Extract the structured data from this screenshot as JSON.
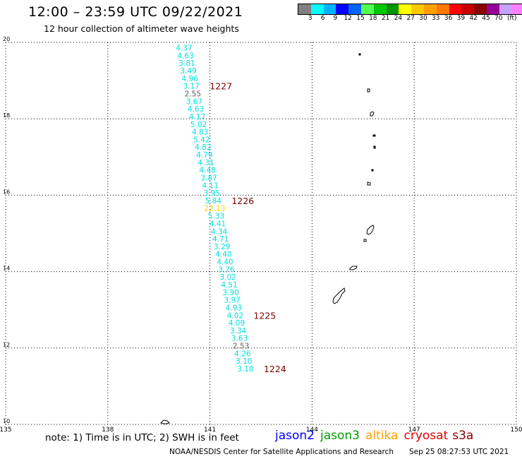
{
  "header": {
    "title": "12:00 – 23:59 UTC 09/22/2021",
    "subtitle": "12 hour collection of altimeter wave heights"
  },
  "legend": {
    "unit": "(ft)",
    "colors": [
      "#808080",
      "#00ffff",
      "#00b4ff",
      "#0000ff",
      "#0064ff",
      "#50ff50",
      "#00c800",
      "#009600",
      "#ffff00",
      "#ffc800",
      "#ffa000",
      "#ff7800",
      "#ff0000",
      "#c80000",
      "#8b0000",
      "#960096",
      "#c8a0ff",
      "#ff80ff",
      "#000000"
    ],
    "labels": [
      "3",
      "6",
      "9",
      "12",
      "15",
      "18",
      "21",
      "24",
      "27",
      "30",
      "33",
      "36",
      "39",
      "42",
      "45",
      "70"
    ]
  },
  "map": {
    "lon_ticks": [
      "135",
      "138",
      "141",
      "144",
      "147",
      "150"
    ],
    "lat_ticks": [
      "20",
      "18",
      "16",
      "14",
      "12",
      "10"
    ],
    "lon_range": [
      135,
      150
    ],
    "lat_range": [
      10,
      20
    ],
    "grid": true
  },
  "track": {
    "color_default": "#00dede",
    "color_low": "#606060",
    "color_high": "#e8d800",
    "points": [
      {
        "lat": 19.86,
        "value": "4.37"
      },
      {
        "lat": 19.66,
        "value": "4.63"
      },
      {
        "lat": 19.46,
        "value": "3.81"
      },
      {
        "lat": 19.26,
        "value": "3.49"
      },
      {
        "lat": 19.06,
        "value": "4.96"
      },
      {
        "lat": 18.86,
        "value": "3.17"
      },
      {
        "lat": 18.66,
        "value": "2.55"
      },
      {
        "lat": 18.46,
        "value": "3.67"
      },
      {
        "lat": 18.26,
        "value": "4.63"
      },
      {
        "lat": 18.06,
        "value": "4.17"
      },
      {
        "lat": 17.86,
        "value": "5.02"
      },
      {
        "lat": 17.66,
        "value": "4.83"
      },
      {
        "lat": 17.46,
        "value": "5.42"
      },
      {
        "lat": 17.26,
        "value": "4.82"
      },
      {
        "lat": 17.06,
        "value": "4.79"
      },
      {
        "lat": 16.86,
        "value": "4.31"
      },
      {
        "lat": 16.66,
        "value": "4.48"
      },
      {
        "lat": 16.46,
        "value": "3.87"
      },
      {
        "lat": 16.26,
        "value": "4.11"
      },
      {
        "lat": 16.06,
        "value": "3.95"
      },
      {
        "lat": 15.86,
        "value": "5.84"
      },
      {
        "lat": 15.66,
        "value": "22.13"
      },
      {
        "lat": 15.46,
        "value": "5.33"
      },
      {
        "lat": 15.26,
        "value": "4.41"
      },
      {
        "lat": 15.06,
        "value": "4.34"
      },
      {
        "lat": 14.86,
        "value": "4.71"
      },
      {
        "lat": 14.66,
        "value": "3.29"
      },
      {
        "lat": 14.46,
        "value": "4.40"
      },
      {
        "lat": 14.26,
        "value": "4.40"
      },
      {
        "lat": 14.06,
        "value": "3.76"
      },
      {
        "lat": 13.86,
        "value": "3.02"
      },
      {
        "lat": 13.66,
        "value": "4.51"
      },
      {
        "lat": 13.46,
        "value": "3.90"
      },
      {
        "lat": 13.26,
        "value": "3.97"
      },
      {
        "lat": 13.06,
        "value": "4.93"
      },
      {
        "lat": 12.86,
        "value": "4.02"
      },
      {
        "lat": 12.66,
        "value": "4.09"
      },
      {
        "lat": 12.46,
        "value": "3.34"
      },
      {
        "lat": 12.26,
        "value": "3.63"
      },
      {
        "lat": 12.06,
        "value": "2.53"
      },
      {
        "lat": 11.86,
        "value": "4.26"
      },
      {
        "lat": 11.66,
        "value": "3.10"
      },
      {
        "lat": 11.46,
        "value": "3.10"
      }
    ],
    "time_labels": [
      {
        "lat": 18.86,
        "text": "1227"
      },
      {
        "lat": 15.86,
        "text": "1226"
      },
      {
        "lat": 12.86,
        "text": "1225"
      },
      {
        "lat": 11.46,
        "text": "1224"
      }
    ],
    "time_label_color": "#7a0000"
  },
  "footer": {
    "note": "note:  1) Time is in UTC;  2) SWH is in feet",
    "satellites": [
      {
        "name": "jason2",
        "color": "#0000ff"
      },
      {
        "name": "jason3",
        "color": "#00a000"
      },
      {
        "name": "altika",
        "color": "#ffa000"
      },
      {
        "name": "cryosat",
        "color": "#e00000"
      },
      {
        "name": "s3a",
        "color": "#8b0000"
      }
    ],
    "credit": "NOAA/NESDIS Center for Satellite Applications and Research",
    "stamp": "Sep 25 08:27:53 UTC 2021"
  }
}
